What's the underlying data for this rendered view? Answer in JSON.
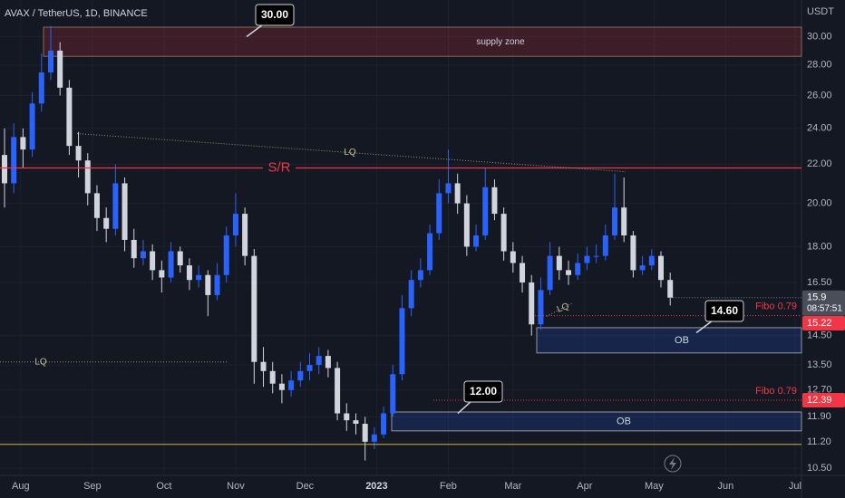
{
  "chart_data": {
    "type": "candlestick",
    "title": "AVAX / TetherUS, 1D, BINANCE",
    "unit": "USDT",
    "log_scale": true,
    "grid": true,
    "up_color": "#2962ff",
    "down_color": "#d1d4dc",
    "ylim": [
      10.32,
      32.8
    ],
    "yticks": [
      {
        "value": 30,
        "label": "30.00"
      },
      {
        "value": 28,
        "label": "28.00"
      },
      {
        "value": 26,
        "label": "26.00"
      },
      {
        "value": 24,
        "label": "24.00"
      },
      {
        "value": 22,
        "label": "22.00"
      },
      {
        "value": 20,
        "label": "20.00"
      },
      {
        "value": 18,
        "label": "18.00"
      },
      {
        "value": 16.5,
        "label": "16.50"
      },
      {
        "value": 14.5,
        "label": "14.50"
      },
      {
        "value": 13.5,
        "label": "13.50"
      },
      {
        "value": 12.7,
        "label": "12.70"
      },
      {
        "value": 11.9,
        "label": "11.90"
      },
      {
        "value": 11.2,
        "label": "11.20"
      },
      {
        "value": 10.5,
        "label": "10.50"
      }
    ],
    "xlim": [
      -0.49,
      86.2
    ],
    "xticks": [
      {
        "value": 1.75,
        "label": "Aug"
      },
      {
        "value": 9.5,
        "label": "Sep"
      },
      {
        "value": 17.25,
        "label": "Oct"
      },
      {
        "value": 25,
        "label": "Nov"
      },
      {
        "value": 32.5,
        "label": "Dec"
      },
      {
        "value": 40.25,
        "label": "2023"
      },
      {
        "value": 48,
        "label": "Feb"
      },
      {
        "value": 55,
        "label": "Mar"
      },
      {
        "value": 62.75,
        "label": "Apr"
      },
      {
        "value": 70.25,
        "label": "May"
      },
      {
        "value": 78,
        "label": "Jun"
      },
      {
        "value": 85.5,
        "label": "Jul"
      }
    ],
    "open": [
      22.5,
      21.0,
      23.5,
      22.8,
      25.5,
      27.5,
      29.0,
      26.5,
      23.0,
      22.2,
      20.5,
      19.3,
      18.8,
      21.0,
      18.3,
      17.5,
      17.8,
      17.0,
      16.7,
      17.8,
      17.2,
      16.6,
      16.8,
      16.0,
      16.8,
      18.5,
      19.5,
      17.6,
      13.6,
      13.3,
      12.9,
      12.7,
      13.0,
      13.3,
      13.5,
      13.8,
      13.4,
      12.0,
      11.8,
      11.7,
      11.2,
      11.4,
      12.0,
      13.2,
      15.5,
      16.6,
      17.0,
      18.6,
      20.5,
      21.0,
      20.0,
      18.0,
      18.5,
      20.8,
      19.5,
      17.8,
      17.3,
      16.5,
      14.9,
      16.2,
      17.6,
      17.0,
      16.8,
      17.3,
      17.6,
      17.6,
      18.5,
      19.8,
      18.5,
      17.0,
      17.2,
      17.6,
      16.6
    ],
    "high": [
      24.0,
      24.3,
      24.0,
      26.2,
      28.8,
      30.8,
      29.6,
      27.0,
      23.8,
      22.6,
      20.9,
      19.8,
      22.0,
      21.3,
      18.8,
      18.3,
      18.1,
      17.4,
      18.2,
      18.0,
      17.5,
      17.2,
      17.0,
      17.3,
      18.9,
      20.5,
      19.8,
      17.9,
      14.1,
      13.6,
      13.2,
      13.3,
      13.6,
      13.9,
      14.1,
      14.0,
      13.6,
      12.3,
      12.0,
      11.9,
      11.6,
      12.2,
      13.5,
      16.0,
      17.0,
      17.5,
      19.0,
      21.2,
      22.8,
      21.5,
      20.4,
      19.0,
      21.8,
      21.2,
      19.8,
      18.2,
      17.6,
      16.8,
      16.7,
      18.2,
      18.0,
      17.4,
      17.7,
      18.0,
      18.1,
      19.0,
      21.5,
      21.3,
      18.7,
      17.6,
      17.9,
      17.8,
      16.9
    ],
    "low": [
      19.8,
      20.5,
      21.8,
      22.4,
      25.0,
      27.0,
      26.0,
      22.5,
      21.3,
      19.9,
      18.7,
      18.2,
      18.5,
      17.8,
      17.1,
      17.2,
      16.6,
      16.1,
      16.5,
      16.9,
      16.2,
      16.3,
      15.2,
      15.8,
      16.5,
      18.0,
      17.2,
      12.9,
      12.8,
      12.6,
      12.3,
      12.5,
      12.8,
      13.0,
      13.2,
      13.1,
      11.8,
      11.5,
      11.4,
      10.7,
      11.0,
      11.3,
      11.9,
      13.0,
      15.2,
      16.3,
      16.8,
      18.3,
      20.0,
      19.5,
      17.6,
      17.8,
      18.3,
      19.2,
      17.4,
      16.9,
      16.1,
      14.5,
      14.7,
      16.0,
      16.6,
      16.4,
      16.6,
      17.0,
      17.3,
      17.4,
      18.3,
      18.2,
      16.7,
      16.8,
      17.0,
      16.3,
      15.6
    ],
    "close": [
      21.0,
      23.5,
      22.8,
      25.5,
      27.5,
      29.0,
      26.5,
      23.0,
      22.2,
      20.5,
      19.3,
      18.8,
      21.0,
      18.3,
      17.5,
      17.8,
      17.0,
      16.7,
      17.8,
      17.2,
      16.6,
      16.8,
      16.0,
      16.8,
      18.5,
      19.5,
      17.6,
      13.6,
      13.3,
      12.9,
      12.7,
      13.0,
      13.3,
      13.5,
      13.8,
      13.4,
      12.0,
      11.8,
      11.7,
      11.2,
      11.4,
      12.0,
      13.2,
      15.5,
      16.6,
      17.0,
      18.6,
      20.5,
      21.0,
      20.0,
      18.0,
      18.5,
      20.8,
      19.5,
      17.8,
      17.3,
      16.5,
      14.9,
      16.2,
      17.6,
      17.0,
      16.8,
      17.3,
      17.6,
      17.6,
      18.5,
      19.8,
      18.5,
      17.0,
      17.2,
      17.6,
      16.6,
      15.9
    ],
    "last_price": {
      "value": 15.9,
      "countdown": "08:57:51"
    },
    "levels": [
      {
        "name": "S/R",
        "value": 21.8,
        "color": "#f23645"
      },
      {
        "value": 11.13,
        "color": "#c9b84a"
      }
    ],
    "fibo": [
      {
        "label": "Fibo 0.79",
        "value": 15.22
      },
      {
        "label": "Fibo 0.79",
        "value": 12.39
      }
    ],
    "zones": [
      {
        "label": "supply zone",
        "low": 28.6,
        "high": 30.7,
        "color": "#f23645"
      },
      {
        "label": "OB",
        "low": 13.9,
        "high": 14.78,
        "color": "#2962ff"
      },
      {
        "label": "OB",
        "low": 11.5,
        "high": 12.04,
        "color": "#2962ff"
      }
    ],
    "liquidity": [
      {
        "label": "LQ",
        "from": 23.7,
        "to": 21.6
      },
      {
        "label": "LQ",
        "from": 13.6,
        "to": 13.6
      },
      {
        "label": "LQ",
        "from": 15.2,
        "to": 15.7
      }
    ],
    "callouts": [
      {
        "value": 30,
        "label": "30.00"
      },
      {
        "value": 14.6,
        "label": "14.60"
      },
      {
        "value": 12,
        "label": "12.00"
      }
    ]
  }
}
